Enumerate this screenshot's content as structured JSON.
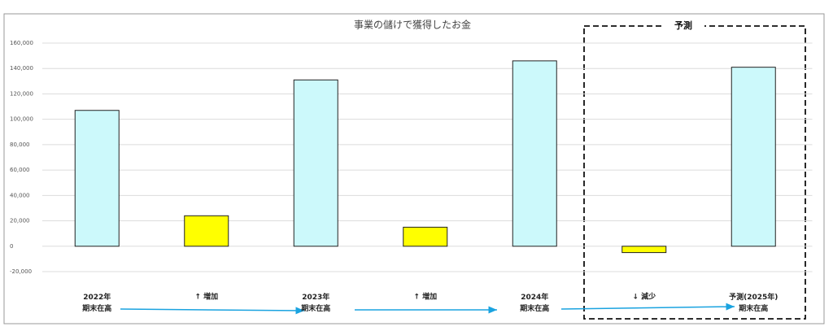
{
  "chart_data": {
    "type": "bar",
    "title": "事業の儲けで獲得したお金",
    "annotation": "予測",
    "categories": [
      "2022年\n期末在高",
      "↑ 増加",
      "2023年\n期末在高",
      "↑ 増加",
      "2024年\n期末在高",
      "↓ 減少",
      "予測(2025年)\n期末在高"
    ],
    "values": [
      107000,
      24000,
      131000,
      15000,
      146000,
      -5000,
      141000
    ],
    "colors": [
      "#ccf9fb",
      "#ffff00",
      "#ccf9fb",
      "#ffff00",
      "#ccf9fb",
      "#ffff00",
      "#ccf9fb"
    ],
    "ylim": [
      -20000,
      160000
    ],
    "yticks": [
      {
        "value": -20000,
        "label": "-20,000"
      },
      0,
      {
        "value": 20000,
        "label": "20,000"
      },
      {
        "value": 40000,
        "label": "40,000"
      },
      {
        "value": 60000,
        "label": "60,000"
      },
      {
        "value": 80000,
        "label": "80,000"
      },
      {
        "value": 100000,
        "label": "100,000"
      },
      {
        "value": 120000,
        "label": "120,000"
      },
      {
        "value": 140000,
        "label": "140,000"
      },
      {
        "value": 160000,
        "label": "160,000"
      }
    ],
    "negative_tick_color": "#e00000",
    "grid": true
  }
}
